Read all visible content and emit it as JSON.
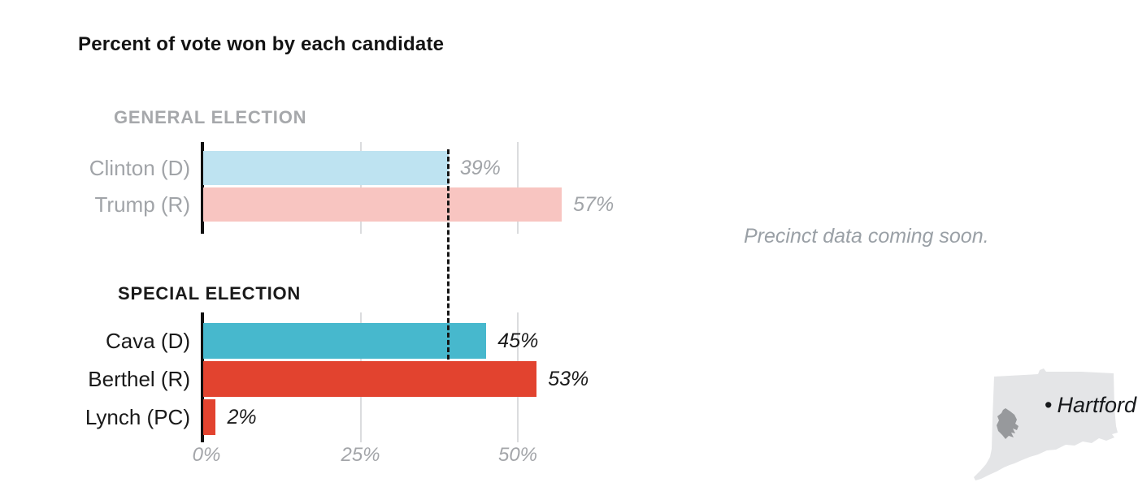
{
  "title": "Percent of vote won by each candidate",
  "annotation": "Precinct data coming soon.",
  "map": {
    "city_label": "Hartford",
    "dot": "•",
    "state_fill": "#e4e5e7",
    "district_fill": "#97999c"
  },
  "chart_data": {
    "type": "bar",
    "orientation": "horizontal",
    "title": "Percent of vote won by each candidate",
    "xlim": [
      0,
      60
    ],
    "x_ticks": [
      {
        "value": 0,
        "label": "0%"
      },
      {
        "value": 25,
        "label": "25%"
      },
      {
        "value": 50,
        "label": "50%"
      }
    ],
    "grid": "vertical",
    "reference_line": {
      "value": 39,
      "style": "dashed",
      "color": "#161616"
    },
    "sections": [
      {
        "label": "GENERAL ELECTION",
        "rows": [
          {
            "name": "Clinton (D)",
            "value": 39,
            "display": "39%",
            "color": "#bee3f1"
          },
          {
            "name": "Trump (R)",
            "value": 57,
            "display": "57%",
            "color": "#f8c5c1"
          }
        ]
      },
      {
        "label": "SPECIAL ELECTION",
        "rows": [
          {
            "name": "Cava (D)",
            "value": 45,
            "display": "45%",
            "color": "#47b8cd"
          },
          {
            "name": "Berthel (R)",
            "value": 53,
            "display": "53%",
            "color": "#e2432f"
          },
          {
            "name": "Lynch (PC)",
            "value": 2,
            "display": "2%",
            "color": "#e2432f"
          }
        ]
      }
    ]
  }
}
